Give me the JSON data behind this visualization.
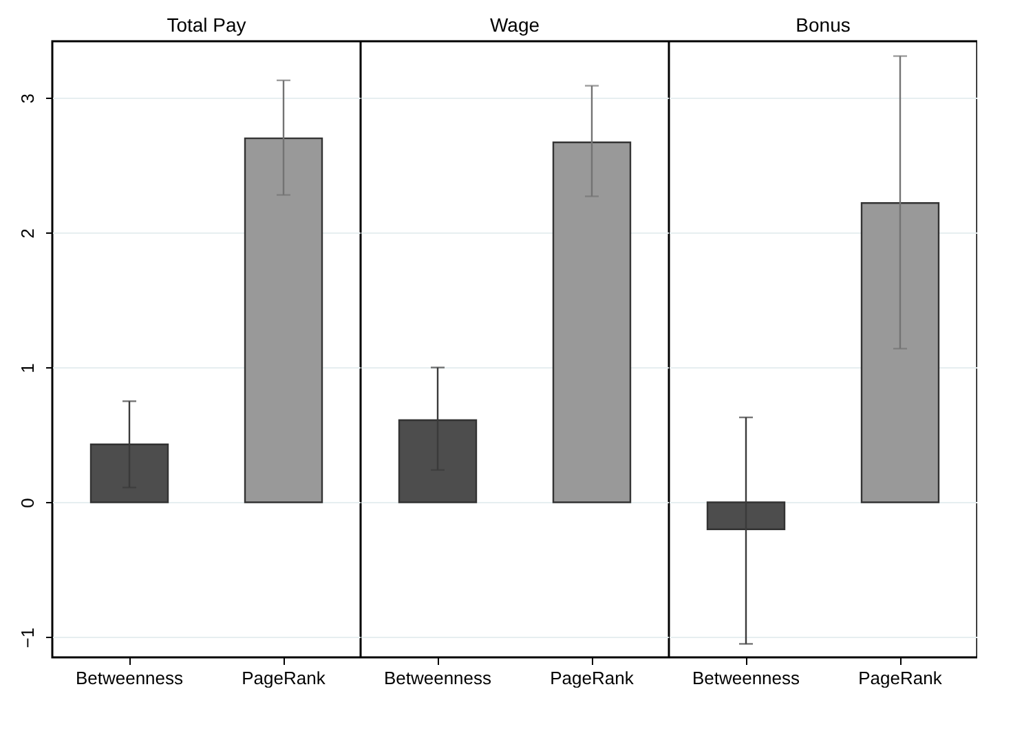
{
  "chart_data": [
    {
      "type": "bar",
      "title": "Total Pay",
      "categories": [
        "Betweenness",
        "PageRank"
      ],
      "values": [
        0.43,
        2.7
      ],
      "colors": [
        "#4d4d4d",
        "#999999"
      ],
      "errors": [
        [
          0.11,
          0.75
        ],
        [
          2.28,
          3.13
        ]
      ],
      "ylim": [
        -1.15,
        3.42
      ],
      "yticks": [
        -1,
        0,
        1,
        2,
        3
      ],
      "grid": "y"
    },
    {
      "type": "bar",
      "title": "Wage",
      "categories": [
        "Betweenness",
        "PageRank"
      ],
      "values": [
        0.61,
        2.67
      ],
      "colors": [
        "#4d4d4d",
        "#999999"
      ],
      "errors": [
        [
          0.24,
          1.0
        ],
        [
          2.27,
          3.09
        ]
      ],
      "ylim": [
        -1.15,
        3.42
      ],
      "yticks": [
        -1,
        0,
        1,
        2,
        3
      ],
      "grid": "y",
      "tick_labels": "x"
    },
    {
      "type": "bar",
      "title": "Bonus",
      "categories": [
        "Betweenness",
        "PageRank"
      ],
      "values": [
        -0.2,
        2.22
      ],
      "colors": [
        "#4d4d4d",
        "#999999"
      ],
      "errors": [
        [
          -1.05,
          0.63
        ],
        [
          1.14,
          3.31
        ]
      ],
      "ylim": [
        -1.15,
        3.42
      ],
      "yticks": [
        -1,
        0,
        1,
        2,
        3
      ],
      "grid": "y",
      "tick_labels": "x"
    }
  ]
}
